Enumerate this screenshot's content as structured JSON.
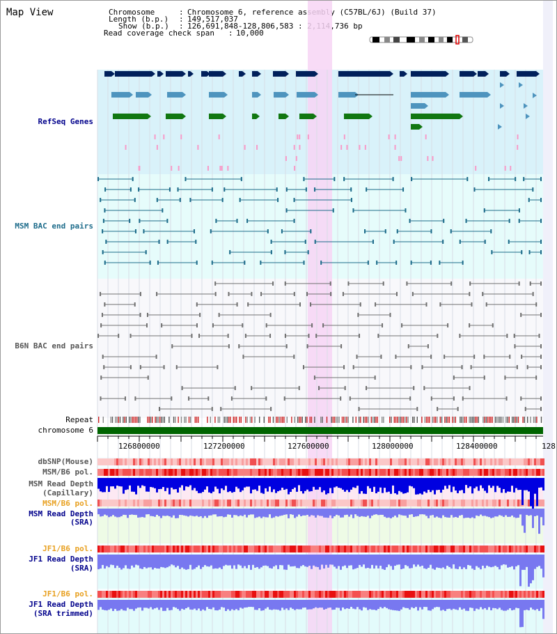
{
  "header": {
    "title": "Map View",
    "chromosome_key": "Chromosome",
    "chromosome_value": "Chromosome 6, reference assembly (C57BL/6J) (Build 37)",
    "length_key": "Length (b.p.)",
    "length_value": "149,517,037",
    "show_key": "Show (b.p.)",
    "show_value": "126,691,848-128,806,583 : 2,114,736 bp",
    "coverage_key": "Read coverage check span",
    "coverage_value": "10,000"
  },
  "tracks": {
    "refseq": "RefSeq Genes",
    "msm_bac": "MSM BAC end pairs",
    "b6n_bac": "B6N BAC end pairs",
    "repeat": "Repeat",
    "chromosome": "chromosome 6",
    "dbsnp": "dbSNP(Mouse)",
    "msm_b6_pol_1": "MSM/B6 pol.",
    "msm_depth_cap_1": "MSM Read Depth",
    "msm_depth_cap_2": "(Capillary)",
    "msm_b6_pol_2": "MSM/B6 pol.",
    "msm_depth_sra_1": "MSM Read Depth",
    "msm_depth_sra_2": "(SRA)",
    "jf1_pol_1": "JF1/B6 pol.",
    "jf1_depth_sra_1": "JF1 Read Depth",
    "jf1_depth_sra_2": "(SRA)",
    "jf1_pol_2": "JF1/B6 pol.",
    "jf1_depth_trim_1": "JF1 Read Depth",
    "jf1_depth_trim_2": "(SRA trimmed)"
  },
  "axis": {
    "ticks": [
      "126800000",
      "127200000",
      "127600000",
      "128000000",
      "128400000",
      "128"
    ]
  },
  "colors": {
    "refseq_bg": "#d9f2fa",
    "msm_bg": "#e6fcfb",
    "b6n_bg": "#f8f8fb",
    "highlight": "#f7d5f5",
    "gene_dark": "#00205b",
    "gene_mid": "#4e94be",
    "gene_green": "#117711",
    "chromosome_bar": "#006400",
    "depth_blue": "#0000e0",
    "depth_light_blue": "#7878f0"
  }
}
